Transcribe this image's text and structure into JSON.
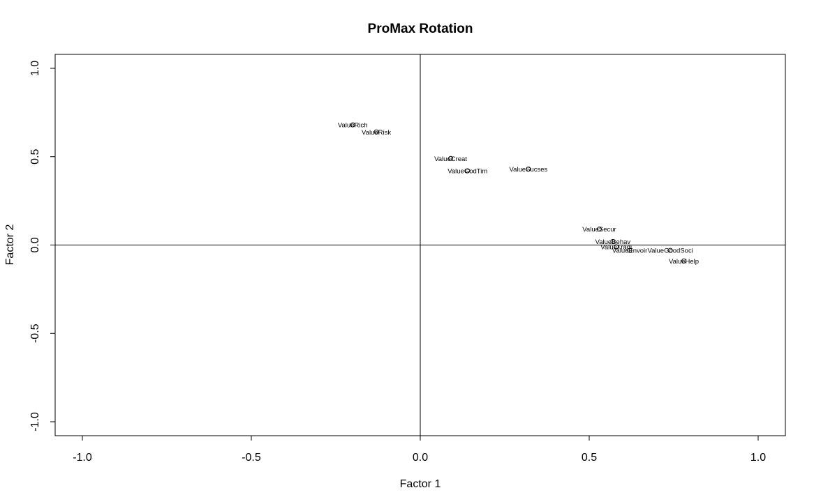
{
  "chart_data": {
    "type": "scatter",
    "title": "ProMax Rotation",
    "xlabel": "Factor 1",
    "ylabel": "Factor 2",
    "xlim": [
      -1.0,
      1.0
    ],
    "ylim": [
      -1.0,
      1.0
    ],
    "xticks": [
      "-1.0",
      "-0.5",
      "0.0",
      "0.5",
      "1.0"
    ],
    "yticks": [
      "-1.0",
      "-0.5",
      "0.0",
      "0.5",
      "1.0"
    ],
    "grid": false,
    "reference_lines": {
      "x": 0,
      "y": 0
    },
    "points": [
      {
        "label": "ValueRich",
        "x": -0.2,
        "y": 0.68
      },
      {
        "label": "ValueRisk",
        "x": -0.13,
        "y": 0.64
      },
      {
        "label": "ValueCreat",
        "x": 0.09,
        "y": 0.49
      },
      {
        "label": "ValueGodTim",
        "x": 0.14,
        "y": 0.42
      },
      {
        "label": "ValueSucses",
        "x": 0.32,
        "y": 0.43
      },
      {
        "label": "ValueSecur",
        "x": 0.53,
        "y": 0.09
      },
      {
        "label": "ValueBehav",
        "x": 0.57,
        "y": 0.02
      },
      {
        "label": "ValueTradi",
        "x": 0.58,
        "y": -0.01
      },
      {
        "label": "ValueEnvoir",
        "x": 0.62,
        "y": -0.03
      },
      {
        "label": "ValueGoodSoci",
        "x": 0.74,
        "y": -0.03
      },
      {
        "label": "ValueHelp",
        "x": 0.78,
        "y": -0.09
      }
    ]
  }
}
